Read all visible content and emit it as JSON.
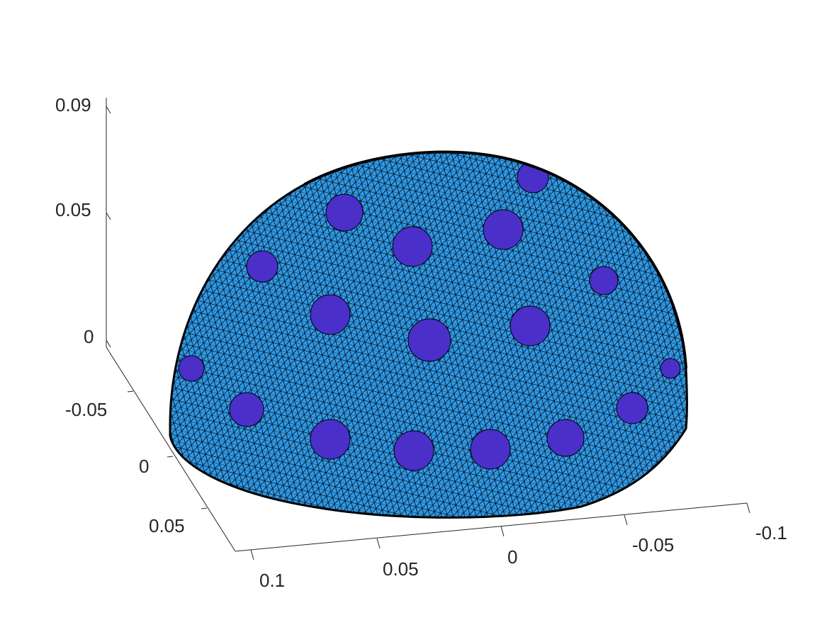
{
  "figure": {
    "kind": "3d-mesh-surface",
    "description_shape": "hemisphere",
    "colors": {
      "surface": "#2f9ae8",
      "mesh_lines": "#000000",
      "electrode": "#4a2fc8",
      "axes": "#262626"
    }
  },
  "axes": {
    "z_ticks": [
      "0.09",
      "0.05",
      "0"
    ],
    "y_ticks": [
      "-0.05",
      "0",
      "0.05"
    ],
    "x_ticks": [
      "0.1",
      "0.05",
      "0",
      "-0.05",
      "-0.1"
    ]
  }
}
